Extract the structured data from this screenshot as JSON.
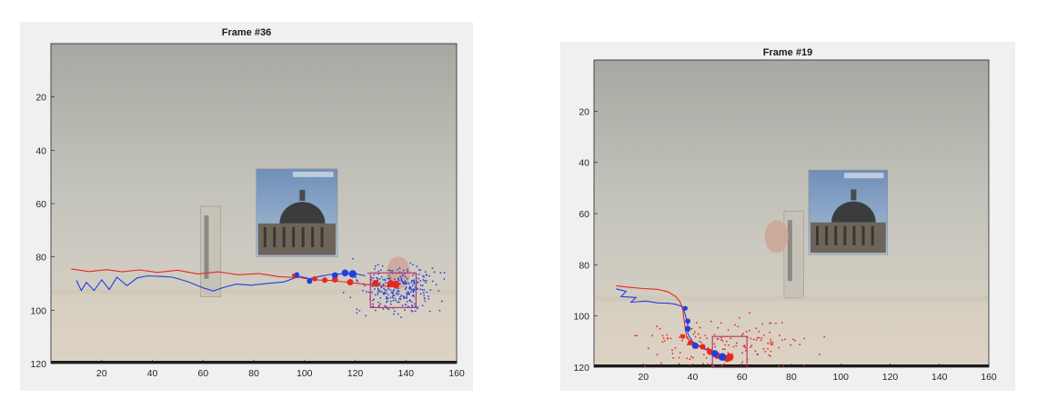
{
  "chart_data": [
    {
      "type": "scatter",
      "title": "Frame #36",
      "xlim": [
        0,
        160
      ],
      "ylim": [
        120,
        0
      ],
      "y_reversed": true,
      "grid": false,
      "xticks": [
        20,
        40,
        60,
        80,
        100,
        120,
        140,
        160
      ],
      "yticks": [
        20,
        40,
        60,
        80,
        100,
        120
      ],
      "image_background": true,
      "series": [
        {
          "color": "#e8281f",
          "kind": "line",
          "points": [
            [
              8,
              84.5
            ],
            [
              15,
              85.5
            ],
            [
              22,
              84.8
            ],
            [
              28,
              85.6
            ],
            [
              35,
              84.9
            ],
            [
              42,
              85.8
            ],
            [
              50,
              85
            ],
            [
              58,
              86.4
            ],
            [
              66,
              85.6
            ],
            [
              74,
              86.7
            ],
            [
              82,
              86.2
            ],
            [
              90,
              87.4
            ],
            [
              98,
              87.8
            ],
            [
              104,
              88.6
            ],
            [
              110,
              88.8
            ],
            [
              118,
              89.6
            ],
            [
              124,
              90.3
            ],
            [
              130,
              90.8
            ],
            [
              134,
              91.2
            ]
          ]
        },
        {
          "color": "#1f3fe0",
          "kind": "line",
          "points": [
            [
              10,
              88.8
            ],
            [
              12,
              92.6
            ],
            [
              14,
              89.6
            ],
            [
              17,
              92.6
            ],
            [
              20,
              88.6
            ],
            [
              23,
              92.2
            ],
            [
              26,
              87.6
            ],
            [
              30,
              90.8
            ],
            [
              34,
              87.9
            ],
            [
              38,
              87.1
            ],
            [
              43,
              87.3
            ],
            [
              48,
              87.6
            ],
            [
              54,
              89.3
            ],
            [
              60,
              91.6
            ],
            [
              64,
              92.8
            ],
            [
              68,
              91.5
            ],
            [
              73,
              90.2
            ],
            [
              79,
              90.6
            ],
            [
              86,
              89.9
            ],
            [
              92,
              89.4
            ],
            [
              98,
              87.2
            ],
            [
              102,
              88.2
            ],
            [
              106,
              87.3
            ],
            [
              110,
              86.6
            ],
            [
              114,
              86.4
            ],
            [
              117,
              86.3
            ],
            [
              120,
              86.3
            ],
            [
              124,
              87.1
            ]
          ]
        },
        {
          "color": "#e8281f",
          "kind": "marker",
          "points": [
            [
              96,
              87
            ],
            [
              104,
              88.2
            ],
            [
              108,
              88.7
            ],
            [
              112,
              88.5
            ],
            [
              118,
              89.5
            ],
            [
              128,
              89.9
            ],
            [
              134,
              90.1
            ],
            [
              136,
              90.4
            ]
          ]
        },
        {
          "color": "#1f3fe0",
          "kind": "marker",
          "points": [
            [
              97,
              86.6
            ],
            [
              102,
              89.1
            ],
            [
              112,
              86.9
            ],
            [
              116,
              86
            ],
            [
              119,
              86.4
            ]
          ]
        }
      ],
      "bounding_box": {
        "color": "#c0396b",
        "x": [
          126,
          144
        ],
        "y": [
          86,
          99
        ]
      },
      "particles": {
        "color": "#2a45d8",
        "center": [
          137,
          92
        ],
        "spread": [
          14,
          8
        ],
        "count": 330
      }
    },
    {
      "type": "scatter",
      "title": "Frame #19",
      "xlim": [
        0,
        160
      ],
      "ylim": [
        120,
        0
      ],
      "y_reversed": true,
      "grid": false,
      "xticks": [
        20,
        40,
        60,
        80,
        100,
        120,
        140,
        160
      ],
      "yticks": [
        20,
        40,
        60,
        80,
        100,
        120
      ],
      "image_background": true,
      "series": [
        {
          "color": "#e8281f",
          "kind": "line",
          "points": [
            [
              9,
              88.2
            ],
            [
              14,
              88.8
            ],
            [
              20,
              89.3
            ],
            [
              26,
              89.6
            ],
            [
              30,
              90.6
            ],
            [
              33,
              92.3
            ],
            [
              35,
              94.6
            ],
            [
              36,
              97.8
            ],
            [
              36.5,
              101.5
            ],
            [
              37,
              105
            ],
            [
              37.5,
              108.3
            ],
            [
              40,
              110.5
            ],
            [
              44,
              112.6
            ],
            [
              48,
              114.2
            ],
            [
              52,
              115.3
            ],
            [
              55,
              116
            ]
          ]
        },
        {
          "color": "#1f3fe0",
          "kind": "line",
          "points": [
            [
              9,
              89.4
            ],
            [
              13,
              90.4
            ],
            [
              11,
              92.4
            ],
            [
              17,
              92.8
            ],
            [
              15,
              94.6
            ],
            [
              21,
              94.2
            ],
            [
              26,
              94.9
            ],
            [
              30,
              95
            ],
            [
              33,
              95.4
            ],
            [
              36,
              96.4
            ],
            [
              37,
              99.6
            ],
            [
              38,
              103.6
            ],
            [
              38,
              107
            ],
            [
              40,
              110
            ],
            [
              44,
              112.5
            ],
            [
              48,
              113.8
            ],
            [
              51,
              115.2
            ]
          ]
        },
        {
          "color": "#e8281f",
          "kind": "marker",
          "points": [
            [
              36,
              108
            ],
            [
              39,
              110.5
            ],
            [
              44,
              112
            ],
            [
              47,
              114
            ],
            [
              50,
              115.5
            ],
            [
              54,
              116.6
            ],
            [
              55,
              116.1
            ]
          ]
        },
        {
          "color": "#1f3fe0",
          "kind": "marker",
          "points": [
            [
              37,
              97
            ],
            [
              38,
              102
            ],
            [
              38,
              105
            ],
            [
              41,
              111.6
            ],
            [
              49,
              114.7
            ],
            [
              52,
              116
            ]
          ]
        }
      ],
      "bounding_box": {
        "color": "#c0396b",
        "x": [
          48,
          62
        ],
        "y": [
          108,
          120
        ]
      },
      "particles": {
        "color": "#e3271f",
        "center": [
          55,
          113
        ],
        "spread": [
          30,
          11
        ],
        "count": 170
      }
    }
  ]
}
